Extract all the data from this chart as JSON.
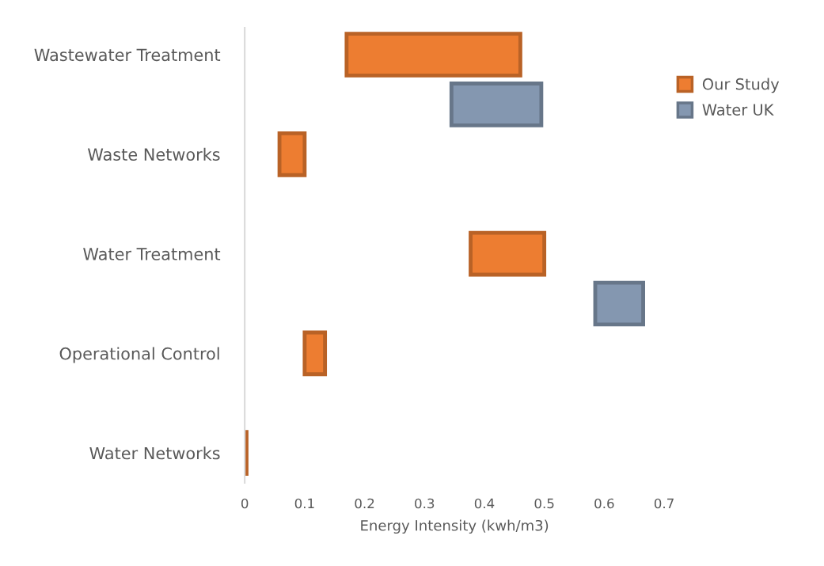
{
  "chart_data": {
    "type": "bar",
    "orientation": "horizontal",
    "xlabel": "Energy Intensity (kwh/m3)",
    "categories": [
      "Wastewater Treatment",
      "Waste Networks",
      "Water Treatment",
      "Operational Control",
      "Water Networks"
    ],
    "series": [
      {
        "name": "Our Study",
        "color": "#ed7d31",
        "base": [
          0.17,
          0.058,
          0.377,
          0.1,
          0
        ],
        "values": [
          0.29,
          0.042,
          0.123,
          0.034,
          0.003
        ]
      },
      {
        "name": "Water UK",
        "color": "#8497b0",
        "base": [
          0.345,
          null,
          0.585,
          null,
          null
        ],
        "values": [
          0.15,
          null,
          0.08,
          null,
          null
        ]
      }
    ],
    "xlim": [
      0,
      0.7
    ],
    "xticks": [
      0,
      0.1,
      0.2,
      0.3,
      0.4,
      0.5,
      0.6,
      0.7
    ],
    "grid": false,
    "legend": "top right",
    "marker": "square"
  }
}
